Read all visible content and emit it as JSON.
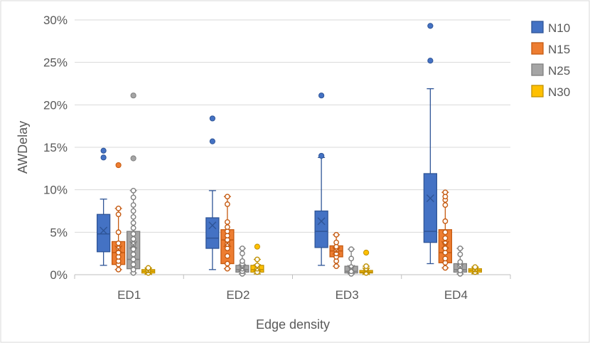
{
  "chart_data": {
    "type": "box",
    "title": "",
    "xlabel": "Edge density",
    "ylabel": "AWDelay",
    "ylim": [
      0,
      0.3
    ],
    "yticks": [
      0,
      0.05,
      0.1,
      0.15,
      0.2,
      0.25,
      0.3
    ],
    "ytick_labels": [
      "0%",
      "5%",
      "10%",
      "15%",
      "20%",
      "25%",
      "30%"
    ],
    "grid": true,
    "legend_position": "right",
    "categories": [
      "ED1",
      "ED2",
      "ED3",
      "ED4"
    ],
    "series": [
      {
        "name": "N10",
        "color": "#4472C4",
        "border": "#2F5597",
        "boxes": [
          {
            "min": 0.011,
            "q1": 0.027,
            "median": 0.048,
            "q3": 0.071,
            "max": 0.089,
            "mean": 0.052,
            "outliers": [
              0.138,
              0.146
            ]
          },
          {
            "min": 0.006,
            "q1": 0.031,
            "median": 0.043,
            "q3": 0.067,
            "max": 0.099,
            "mean": 0.058,
            "outliers": [
              0.157,
              0.184
            ]
          },
          {
            "min": 0.011,
            "q1": 0.032,
            "median": 0.051,
            "q3": 0.075,
            "max": 0.138,
            "mean": 0.063,
            "outliers": [
              0.14,
              0.211
            ]
          },
          {
            "min": 0.013,
            "q1": 0.038,
            "median": 0.051,
            "q3": 0.119,
            "max": 0.219,
            "mean": 0.09,
            "outliers": [
              0.252,
              0.293
            ]
          }
        ]
      },
      {
        "name": "N15",
        "color": "#ED7D31",
        "border": "#C55A11",
        "boxes": [
          {
            "min": 0.006,
            "q1": 0.012,
            "median": 0.026,
            "q3": 0.039,
            "max": 0.078,
            "mean": 0.03,
            "outliers": [
              0.129
            ],
            "points": [
              0.006,
              0.012,
              0.016,
              0.021,
              0.026,
              0.031,
              0.037,
              0.05,
              0.071,
              0.078
            ]
          },
          {
            "min": 0.007,
            "q1": 0.013,
            "median": 0.041,
            "q3": 0.053,
            "max": 0.092,
            "mean": 0.037,
            "outliers": [],
            "points": [
              0.007,
              0.013,
              0.022,
              0.031,
              0.036,
              0.041,
              0.046,
              0.051,
              0.056,
              0.062,
              0.083,
              0.092
            ]
          },
          {
            "min": 0.01,
            "q1": 0.021,
            "median": 0.028,
            "q3": 0.034,
            "max": 0.047,
            "mean": 0.028,
            "outliers": [],
            "points": [
              0.01,
              0.016,
              0.021,
              0.025,
              0.029,
              0.033,
              0.038,
              0.047
            ]
          },
          {
            "min": 0.008,
            "q1": 0.014,
            "median": 0.026,
            "q3": 0.053,
            "max": 0.097,
            "mean": 0.035,
            "outliers": [],
            "points": [
              0.008,
              0.014,
              0.019,
              0.026,
              0.031,
              0.037,
              0.043,
              0.05,
              0.063,
              0.082,
              0.088,
              0.092,
              0.097
            ]
          }
        ]
      },
      {
        "name": "N25",
        "color": "#A5A5A5",
        "border": "#7F7F7F",
        "boxes": [
          {
            "min": 0.002,
            "q1": 0.007,
            "median": 0.018,
            "q3": 0.051,
            "max": 0.099,
            "mean": 0.035,
            "outliers": [
              0.137,
              0.211
            ],
            "points": [
              0.002,
              0.006,
              0.012,
              0.018,
              0.024,
              0.03,
              0.036,
              0.042,
              0.048,
              0.055,
              0.061,
              0.068,
              0.075,
              0.082,
              0.091,
              0.099
            ]
          },
          {
            "min": 0.001,
            "q1": 0.003,
            "median": 0.006,
            "q3": 0.011,
            "max": 0.031,
            "mean": 0.008,
            "outliers": [],
            "points": [
              0.001,
              0.004,
              0.007,
              0.01,
              0.013,
              0.016,
              0.025,
              0.031
            ]
          },
          {
            "min": 0.001,
            "q1": 0.002,
            "median": 0.004,
            "q3": 0.01,
            "max": 0.03,
            "mean": 0.007,
            "outliers": [],
            "points": [
              0.001,
              0.004,
              0.009,
              0.019,
              0.03
            ]
          },
          {
            "min": 0.001,
            "q1": 0.003,
            "median": 0.006,
            "q3": 0.013,
            "max": 0.031,
            "mean": 0.009,
            "outliers": [],
            "points": [
              0.001,
              0.005,
              0.01,
              0.015,
              0.024,
              0.031
            ]
          }
        ]
      },
      {
        "name": "N30",
        "color": "#FFC000",
        "border": "#BF9000",
        "boxes": [
          {
            "min": 0.001,
            "q1": 0.002,
            "median": 0.004,
            "q3": 0.006,
            "max": 0.008,
            "mean": 0.004,
            "outliers": [],
            "points": [
              0.002,
              0.005,
              0.008
            ]
          },
          {
            "min": 0.001,
            "q1": 0.003,
            "median": 0.006,
            "q3": 0.011,
            "max": 0.018,
            "mean": 0.008,
            "outliers": [
              0.033
            ],
            "points": [
              0.003,
              0.007,
              0.011,
              0.018
            ]
          },
          {
            "min": 0.001,
            "q1": 0.002,
            "median": 0.003,
            "q3": 0.005,
            "max": 0.01,
            "mean": 0.004,
            "outliers": [
              0.026
            ],
            "points": [
              0.002,
              0.006,
              0.01
            ]
          },
          {
            "min": 0.001,
            "q1": 0.003,
            "median": 0.005,
            "q3": 0.007,
            "max": 0.009,
            "mean": 0.005,
            "outliers": [],
            "points": [
              0.003,
              0.006,
              0.009
            ]
          }
        ]
      }
    ]
  }
}
